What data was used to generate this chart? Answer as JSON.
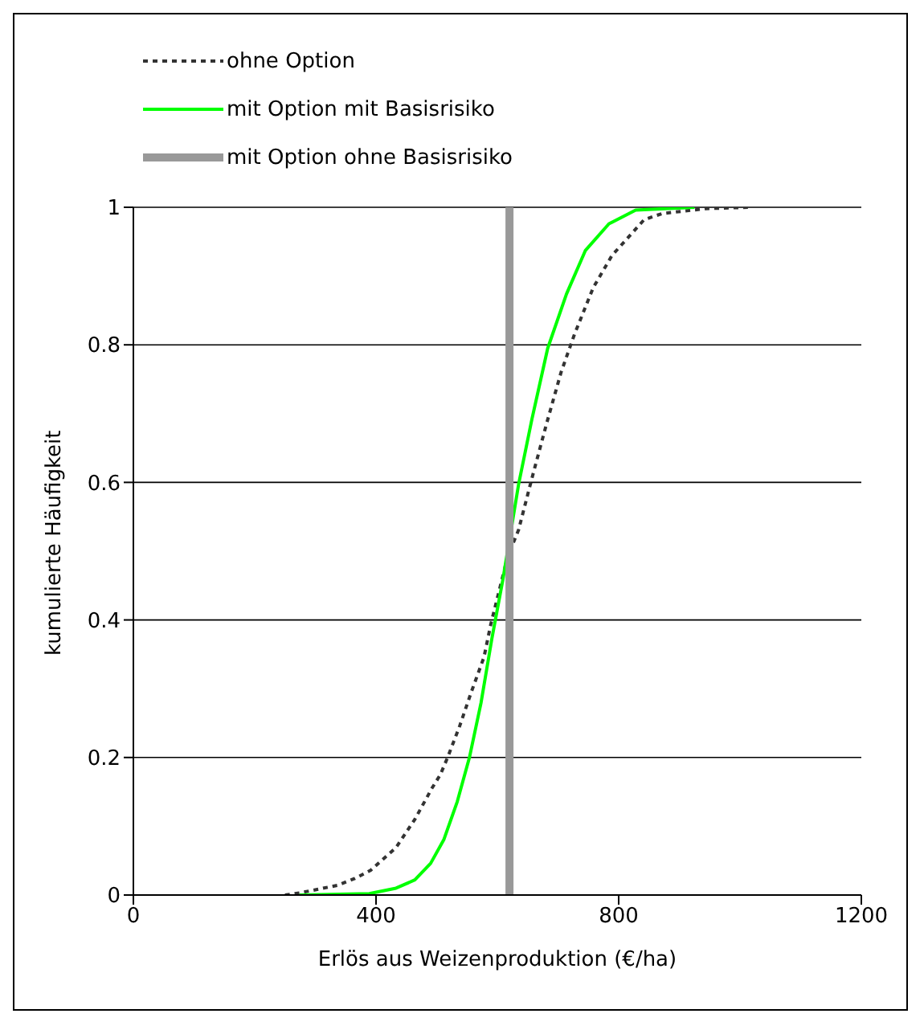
{
  "chart_data": {
    "type": "line",
    "xlabel": "Erlös aus Weizenproduktion (€/ha)",
    "ylabel": "kumulierte Häufigkeit",
    "series": [
      {
        "name": "ohne Option",
        "color": "#333333",
        "line_style": "dotted",
        "x": [
          250,
          274,
          336,
          365,
          391,
          433,
          464,
          492,
          506,
          518,
          538,
          557,
          578,
          589,
          617,
          635,
          657,
          681,
          705,
          727,
          758,
          789,
          842,
          872,
          943,
          1013
        ],
        "values": [
          0,
          0.003,
          0.014,
          0.024,
          0.036,
          0.069,
          0.11,
          0.155,
          0.175,
          0.2,
          0.246,
          0.295,
          0.346,
          0.393,
          0.492,
          0.531,
          0.606,
          0.685,
          0.76,
          0.815,
          0.883,
          0.93,
          0.982,
          0.991,
          0.998,
          1
        ]
      },
      {
        "name": "mit Option mit Basisrisiko",
        "color": "#00ff00",
        "line_style": "solid",
        "x": [
          274,
          389,
          433,
          464,
          490,
          512,
          534,
          554,
          573,
          591,
          609,
          635,
          657,
          683,
          714,
          745,
          784,
          828,
          925
        ],
        "values": [
          0,
          0.002,
          0.01,
          0.022,
          0.046,
          0.081,
          0.136,
          0.2,
          0.279,
          0.373,
          0.458,
          0.597,
          0.692,
          0.795,
          0.874,
          0.937,
          0.976,
          0.996,
          1
        ]
      },
      {
        "name": "mit Option ohne Basisrisiko",
        "color": "#999999",
        "line_style": "solid",
        "x": [
          620,
          620
        ],
        "values": [
          0,
          1
        ]
      }
    ],
    "xlim": [
      0,
      1200
    ],
    "xticks": [
      0,
      400,
      800,
      1200
    ],
    "ylim": [
      0,
      1
    ],
    "yticks": [
      0,
      0.2,
      0.4,
      0.6,
      0.8,
      1
    ],
    "grid": "y",
    "legend": "top",
    "marker": "none"
  }
}
